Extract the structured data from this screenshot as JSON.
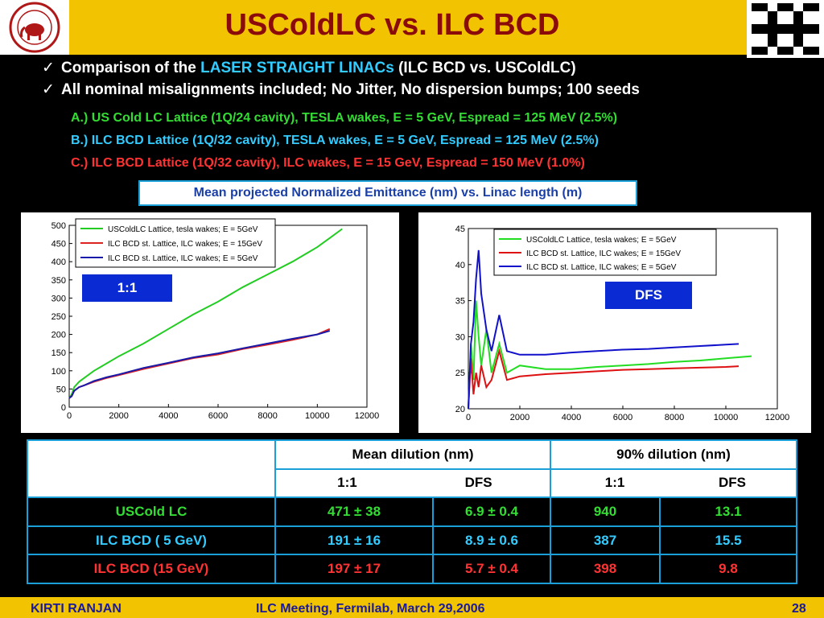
{
  "title": "USColdLC vs. ILC BCD",
  "bullets": [
    {
      "check": "✓",
      "prefix": "Comparison of the ",
      "highlight": "LASER STRAIGHT LINACs",
      "suffix": " (ILC BCD vs. USColdLC)"
    },
    {
      "check": "✓",
      "text": "All nominal misalignments included;  No Jitter, No dispersion bumps; 100 seeds"
    }
  ],
  "cases": [
    {
      "text": "A.) US Cold LC Lattice (1Q/24 cavity), TESLA wakes, E = 5 GeV, Espread = 125 MeV (2.5%)",
      "color": "#33dd33"
    },
    {
      "text": "B.) ILC BCD Lattice (1Q/32 cavity), TESLA wakes, E = 5 GeV, Espread = 125 MeV (2.5%)",
      "color": "#33ccff"
    },
    {
      "text": "C.) ILC BCD Lattice (1Q/32 cavity), ILC wakes, E = 15 GeV, Espread = 150 MeV (1.0%)",
      "color": "#ff3333"
    }
  ],
  "caption": "Mean projected Normalized Emittance (nm) vs. Linac length (m)",
  "chart_data": [
    {
      "type": "line",
      "tag": "1:1",
      "xlim": [
        0,
        12000
      ],
      "ylim": [
        0,
        500
      ],
      "xticks": [
        "0",
        "2000",
        "4000",
        "6000",
        "8000",
        "10000",
        "12000"
      ],
      "yticks": [
        "0",
        "50",
        "100",
        "150",
        "200",
        "250",
        "300",
        "350",
        "400",
        "450",
        "500"
      ],
      "series": [
        {
          "name": "USColdLC Lattice, tesla wakes; E = 5GeV",
          "color": "#22cc22",
          "x": [
            0,
            100,
            200,
            400,
            600,
            1000,
            1500,
            2000,
            3000,
            4000,
            5000,
            6000,
            7000,
            8000,
            9000,
            10000,
            10500,
            11000
          ],
          "y": [
            25,
            35,
            55,
            70,
            80,
            100,
            120,
            140,
            175,
            215,
            255,
            290,
            330,
            365,
            400,
            440,
            465,
            490
          ]
        },
        {
          "name": "ILC BCD st. Lattice, ILC wakes; E = 15GeV",
          "color": "#dd2222",
          "x": [
            0,
            100,
            200,
            400,
            600,
            1000,
            1500,
            2000,
            3000,
            4000,
            5000,
            6000,
            7000,
            8000,
            9000,
            10000,
            10500
          ],
          "y": [
            25,
            30,
            45,
            55,
            60,
            70,
            80,
            88,
            105,
            120,
            135,
            145,
            160,
            172,
            185,
            200,
            215
          ]
        },
        {
          "name": "ILC BCD st. Lattice, ILC wakes; E = 5GeV",
          "color": "#1a1aaa",
          "x": [
            0,
            100,
            200,
            400,
            600,
            1000,
            1500,
            2000,
            3000,
            4000,
            5000,
            6000,
            7000,
            8000,
            9000,
            10000,
            10500
          ],
          "y": [
            25,
            30,
            45,
            55,
            60,
            72,
            82,
            90,
            108,
            122,
            137,
            148,
            162,
            175,
            188,
            200,
            210
          ]
        }
      ]
    },
    {
      "type": "line",
      "tag": "DFS",
      "xlim": [
        0,
        12000
      ],
      "ylim": [
        20,
        45
      ],
      "xticks": [
        "0",
        "2000",
        "4000",
        "6000",
        "8000",
        "10000",
        "12000"
      ],
      "yticks": [
        "20",
        "25",
        "30",
        "35",
        "40",
        "45"
      ],
      "series": [
        {
          "name": "USColdLC Lattice, tesla wakes; E = 5GeV",
          "color": "#22dd22",
          "x": [
            0,
            100,
            200,
            300,
            400,
            500,
            700,
            900,
            1200,
            1500,
            2000,
            3000,
            4000,
            5000,
            6000,
            7000,
            8000,
            9000,
            10000,
            11000
          ],
          "y": [
            20,
            29,
            24,
            35,
            30,
            26,
            31,
            25,
            29,
            25,
            26,
            25.5,
            25.5,
            25.8,
            26,
            26.2,
            26.5,
            26.7,
            27,
            27.3
          ]
        },
        {
          "name": "ILC BCD st. Lattice, ILC wakes; E = 15GeV",
          "color": "#dd1111",
          "x": [
            0,
            100,
            200,
            300,
            400,
            500,
            700,
            900,
            1200,
            1500,
            2000,
            3000,
            4000,
            5000,
            6000,
            7000,
            8000,
            9000,
            10000,
            10500
          ],
          "y": [
            20,
            27,
            22,
            25,
            23,
            26,
            23,
            24,
            28,
            24,
            24.5,
            24.8,
            25,
            25.2,
            25.4,
            25.5,
            25.6,
            25.7,
            25.8,
            25.9
          ]
        },
        {
          "name": "ILC BCD st. Lattice, ILC wakes; E = 5GeV",
          "color": "#1111cc",
          "x": [
            0,
            100,
            200,
            300,
            400,
            500,
            700,
            900,
            1200,
            1500,
            2000,
            3000,
            4000,
            5000,
            6000,
            7000,
            8000,
            9000,
            10000,
            10500
          ],
          "y": [
            20,
            29,
            32,
            38,
            42,
            36,
            31,
            28,
            33,
            28,
            27.5,
            27.5,
            27.8,
            28,
            28.2,
            28.3,
            28.5,
            28.7,
            28.9,
            29
          ]
        }
      ]
    }
  ],
  "table": {
    "header1": [
      "",
      "Mean dilution (nm)",
      "90% dilution (nm)"
    ],
    "header2": [
      "1:1",
      "DFS",
      "1:1",
      "DFS"
    ],
    "rows": [
      {
        "label": "USCold LC",
        "color": "#33dd33",
        "values": [
          "471 ± 38",
          "6.9 ± 0.4",
          "940",
          "13.1"
        ]
      },
      {
        "label": "ILC BCD ( 5 GeV)",
        "color": "#33ccff",
        "values": [
          "191 ± 16",
          "8.9 ± 0.6",
          "387",
          "15.5"
        ]
      },
      {
        "label": "ILC BCD (15 GeV)",
        "color": "#ff3333",
        "values": [
          "197 ± 17",
          "5.7 ± 0.4",
          "398",
          "9.8"
        ]
      }
    ]
  },
  "footer": {
    "author": "KIRTI  RANJAN",
    "meeting": "ILC Meeting, Fermilab, March 29,2006",
    "page": "28"
  },
  "logos": {
    "left": "university-seal",
    "right": "fermilab-logo"
  }
}
